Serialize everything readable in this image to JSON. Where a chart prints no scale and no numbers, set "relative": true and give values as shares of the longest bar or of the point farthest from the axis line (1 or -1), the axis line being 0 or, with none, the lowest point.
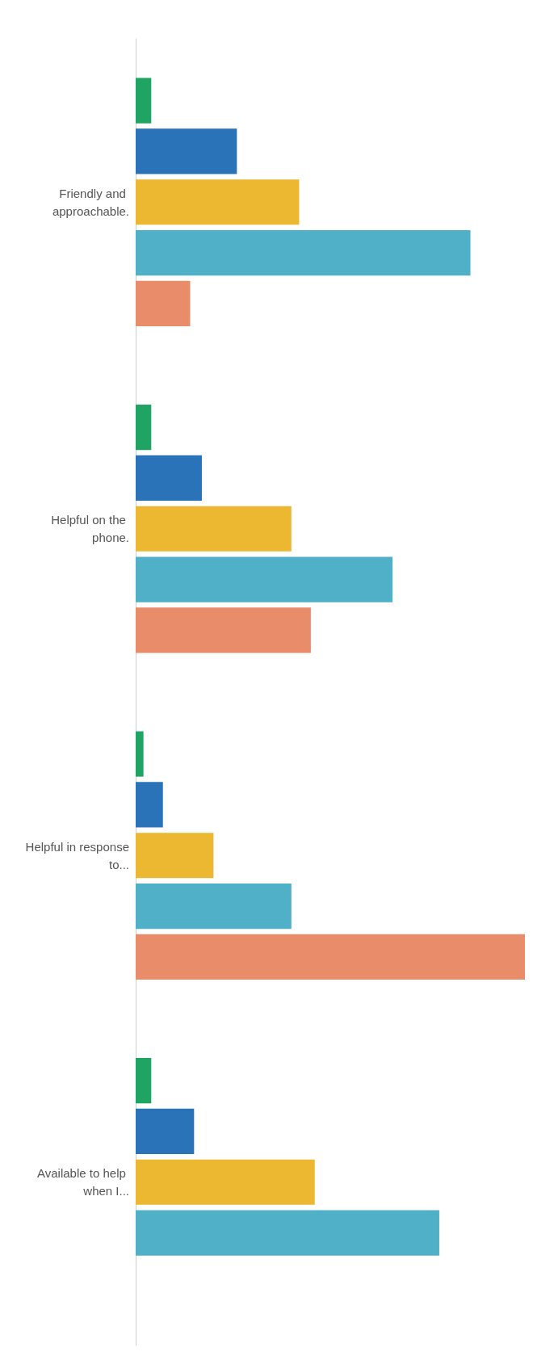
{
  "chart_data": {
    "type": "bar",
    "orientation": "horizontal",
    "relative": true,
    "categories": [
      "Friendly and approachable.",
      "Helpful on the phone.",
      "Helpful in response to...",
      "Available to help when I..."
    ],
    "series": [
      {
        "color": "#1fa463",
        "values": [
          0.04,
          0.04,
          0.02,
          0.04
        ]
      },
      {
        "color": "#2a73b8",
        "values": [
          0.26,
          0.17,
          0.07,
          0.15
        ]
      },
      {
        "color": "#ecb832",
        "values": [
          0.42,
          0.4,
          0.2,
          0.46
        ]
      },
      {
        "color": "#4fb0c8",
        "values": [
          0.86,
          0.66,
          0.4,
          0.78
        ]
      },
      {
        "color": "#e88c6a",
        "values": [
          0.14,
          0.45,
          1,
          null
        ]
      }
    ]
  }
}
